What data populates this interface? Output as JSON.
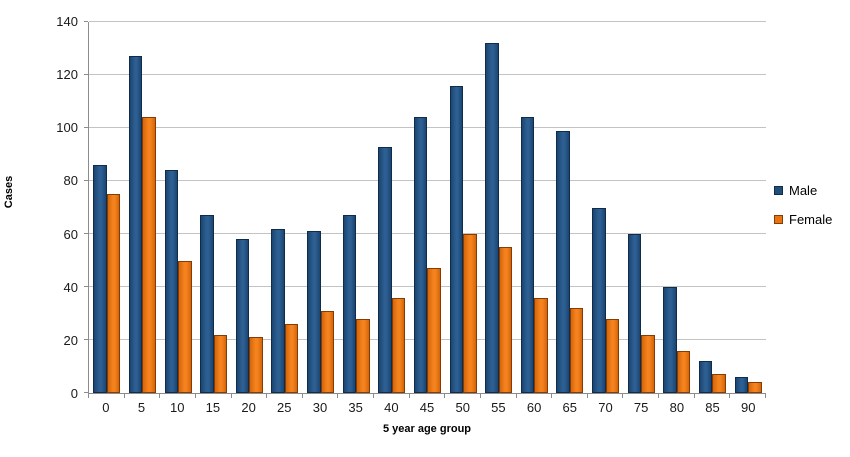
{
  "chart_data": {
    "type": "bar",
    "title": "",
    "xlabel": "5 year age group",
    "ylabel": "Cases",
    "categories": [
      "0",
      "5",
      "10",
      "15",
      "20",
      "25",
      "30",
      "35",
      "40",
      "45",
      "50",
      "55",
      "60",
      "65",
      "70",
      "75",
      "80",
      "85",
      "90"
    ],
    "series": [
      {
        "name": "Male",
        "color": "#1F4E79",
        "fill_edge": "#1B4571",
        "fill_center": "#2D5F92",
        "border_color": "#102C49",
        "values": [
          86,
          127,
          84,
          67,
          58,
          62,
          61,
          67,
          93,
          104,
          116,
          132,
          104,
          99,
          70,
          60,
          40,
          12,
          6
        ]
      },
      {
        "name": "Female",
        "color": "#E9730F",
        "fill_edge": "#D66508",
        "fill_center": "#F4831F",
        "border_color": "#843C07",
        "values": [
          75,
          104,
          50,
          22,
          21,
          26,
          31,
          28,
          36,
          47,
          60,
          55,
          36,
          32,
          28,
          22,
          16,
          7,
          4
        ]
      }
    ],
    "ylim": [
      0,
      140
    ],
    "yticks": [
      0,
      20,
      40,
      60,
      80,
      100,
      120,
      140
    ],
    "grid": true,
    "legend_position": "right"
  }
}
